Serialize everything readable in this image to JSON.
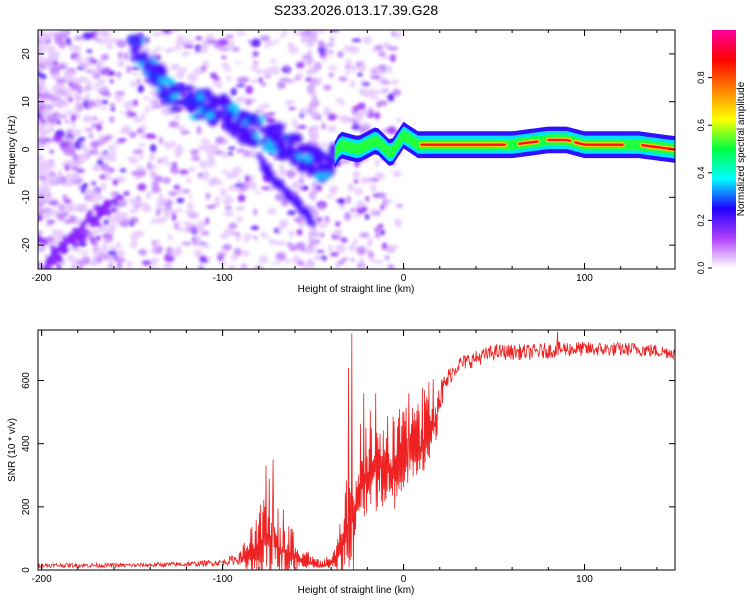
{
  "title": "S233.2026.013.17.39.G28",
  "chart_data": [
    {
      "type": "heatmap",
      "xlabel": "Height of straight line (km)",
      "ylabel": "Frequency (Hz)",
      "xlim": [
        -202,
        150
      ],
      "ylim": [
        -25,
        25
      ],
      "xticks": [
        -200,
        -100,
        0,
        100
      ],
      "yticks": [
        -20,
        -10,
        0,
        10,
        20
      ],
      "colorbar": {
        "label": "Normalized spectral amplitude",
        "range": [
          0,
          1
        ],
        "ticks": [
          "0.0",
          "0.2",
          "0.4",
          "0.6",
          "0.8"
        ],
        "tick_values": [
          0,
          0.2,
          0.4,
          0.6,
          0.8
        ],
        "stops": [
          "#ffffff",
          "#b040ff",
          "#2000ff",
          "#00ffff",
          "#00ff40",
          "#ffff00",
          "#ff8000",
          "#ff0000",
          "#ff00a0"
        ]
      },
      "ridge": [
        {
          "x": -150,
          "y": 23
        },
        {
          "x": -140,
          "y": 17
        },
        {
          "x": -130,
          "y": 12
        },
        {
          "x": -120,
          "y": 10
        },
        {
          "x": -110,
          "y": 9
        },
        {
          "x": -100,
          "y": 8
        },
        {
          "x": -90,
          "y": 5
        },
        {
          "x": -80,
          "y": 4
        },
        {
          "x": -70,
          "y": 2
        },
        {
          "x": -60,
          "y": 0
        },
        {
          "x": -50,
          "y": -2
        },
        {
          "x": -42,
          "y": -4
        },
        {
          "x": -35,
          "y": 1
        },
        {
          "x": -25,
          "y": 0
        },
        {
          "x": -15,
          "y": 2
        },
        {
          "x": -7,
          "y": -1
        },
        {
          "x": 0,
          "y": 3
        },
        {
          "x": 8,
          "y": 1
        },
        {
          "x": 30,
          "y": 1
        },
        {
          "x": 60,
          "y": 1
        },
        {
          "x": 80,
          "y": 2
        },
        {
          "x": 90,
          "y": 2
        },
        {
          "x": 100,
          "y": 1
        },
        {
          "x": 130,
          "y": 1
        },
        {
          "x": 150,
          "y": 0
        }
      ],
      "lower_branch": [
        {
          "x": -80,
          "y": -2
        },
        {
          "x": -70,
          "y": -7
        },
        {
          "x": -60,
          "y": -11
        },
        {
          "x": -50,
          "y": -15
        }
      ]
    },
    {
      "type": "line",
      "xlabel": "Height of straight line (km)",
      "ylabel": "SNR (10 * v/v)",
      "xlim": [
        -202,
        150
      ],
      "ylim": [
        0,
        760
      ],
      "xticks": [
        -200,
        -100,
        0,
        100
      ],
      "yticks": [
        0,
        200,
        400,
        600
      ],
      "series": [
        {
          "name": "SNR",
          "color": "#ee2222",
          "envelope_x": [
            -202,
            -150,
            -120,
            -100,
            -90,
            -80,
            -75,
            -68,
            -60,
            -52,
            -45,
            -38,
            -32,
            -28,
            -24,
            -20,
            -15,
            -10,
            -5,
            0,
            5,
            10,
            15,
            20,
            25,
            30,
            40,
            50,
            70,
            90,
            110,
            130,
            150
          ],
          "envelope_base": [
            12,
            12,
            15,
            20,
            30,
            60,
            100,
            60,
            40,
            20,
            12,
            30,
            90,
            160,
            260,
            300,
            320,
            330,
            300,
            340,
            360,
            380,
            430,
            520,
            600,
            640,
            660,
            680,
            680,
            690,
            690,
            690,
            680
          ],
          "envelope_amp": [
            14,
            14,
            16,
            20,
            40,
            120,
            210,
            160,
            90,
            30,
            15,
            40,
            180,
            330,
            240,
            200,
            250,
            230,
            200,
            180,
            160,
            200,
            180,
            120,
            60,
            50,
            50,
            50,
            50,
            50,
            45,
            45,
            40
          ],
          "peaks": [
            {
              "x": -28.5,
              "y": 750
            },
            {
              "x": -30.5,
              "y": 640
            },
            {
              "x": -22,
              "y": 560
            },
            {
              "x": -72,
              "y": 350
            },
            {
              "x": -76,
              "y": 330
            },
            {
              "x": 3,
              "y": 560
            },
            {
              "x": 85,
              "y": 755
            }
          ]
        }
      ]
    }
  ]
}
